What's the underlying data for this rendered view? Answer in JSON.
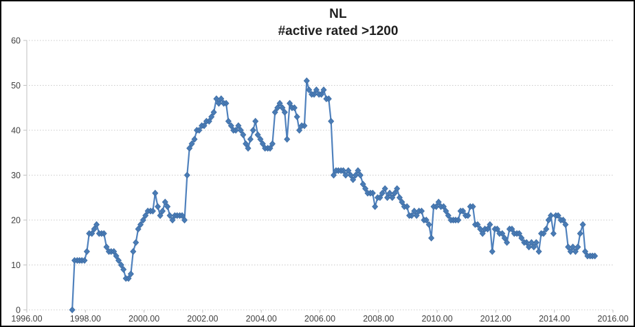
{
  "window": {
    "background": "#FFFFFF",
    "frame_border": "#000000"
  },
  "chart_data": {
    "type": "line",
    "title": "NL",
    "subtitle": "#active rated >1200",
    "xlabel": "",
    "ylabel": "",
    "xlim": [
      1996.0,
      2016.0
    ],
    "ylim": [
      0,
      60
    ],
    "x_ticks": [
      1996,
      1998,
      2000,
      2002,
      2004,
      2006,
      2008,
      2010,
      2012,
      2014,
      2016
    ],
    "x_tick_labels": [
      "1996.00",
      "1998.00",
      "2000.00",
      "2002.00",
      "2004.00",
      "2006.00",
      "2008.00",
      "2010.00",
      "2012.00",
      "2014.00",
      "2016.00"
    ],
    "y_ticks": [
      0,
      10,
      20,
      30,
      40,
      50,
      60
    ],
    "y_tick_labels": [
      "0",
      "10",
      "20",
      "30",
      "40",
      "50",
      "60"
    ],
    "grid": "horizontal dotted",
    "legend": "none",
    "marker": "diamond",
    "colors": {
      "line": "#4F81BD",
      "marker_fill": "#4A7CB5",
      "marker_edge": "#3E6DA5",
      "axis": "#BFBFBF",
      "grid": "#C9C9C9",
      "tick_label": "#3F3F3F",
      "title": "#1F1F1F"
    },
    "series": [
      {
        "name": "NL #active rated >1200",
        "points": [
          [
            1997.55,
            0
          ],
          [
            1997.63,
            11
          ],
          [
            1997.72,
            11
          ],
          [
            1997.8,
            11
          ],
          [
            1997.88,
            11
          ],
          [
            1997.97,
            11
          ],
          [
            1998.05,
            13
          ],
          [
            1998.13,
            17
          ],
          [
            1998.22,
            17
          ],
          [
            1998.3,
            18
          ],
          [
            1998.38,
            19
          ],
          [
            1998.47,
            17
          ],
          [
            1998.55,
            17
          ],
          [
            1998.63,
            17
          ],
          [
            1998.72,
            14
          ],
          [
            1998.8,
            13
          ],
          [
            1998.88,
            13
          ],
          [
            1998.97,
            13
          ],
          [
            1999.05,
            12
          ],
          [
            1999.13,
            11
          ],
          [
            1999.22,
            10
          ],
          [
            1999.3,
            9
          ],
          [
            1999.38,
            7
          ],
          [
            1999.47,
            7
          ],
          [
            1999.55,
            8
          ],
          [
            1999.63,
            13
          ],
          [
            1999.72,
            15
          ],
          [
            1999.8,
            18
          ],
          [
            1999.88,
            19
          ],
          [
            1999.97,
            20
          ],
          [
            2000.05,
            21
          ],
          [
            2000.13,
            22
          ],
          [
            2000.22,
            22
          ],
          [
            2000.3,
            22
          ],
          [
            2000.38,
            26
          ],
          [
            2000.47,
            23
          ],
          [
            2000.55,
            21
          ],
          [
            2000.63,
            22
          ],
          [
            2000.72,
            24
          ],
          [
            2000.8,
            23
          ],
          [
            2000.88,
            21
          ],
          [
            2000.97,
            20
          ],
          [
            2001.05,
            21
          ],
          [
            2001.13,
            21
          ],
          [
            2001.22,
            21
          ],
          [
            2001.3,
            21
          ],
          [
            2001.38,
            20
          ],
          [
            2001.47,
            30
          ],
          [
            2001.55,
            36
          ],
          [
            2001.63,
            37
          ],
          [
            2001.72,
            38
          ],
          [
            2001.8,
            40
          ],
          [
            2001.88,
            40
          ],
          [
            2001.97,
            41
          ],
          [
            2002.05,
            41
          ],
          [
            2002.13,
            42
          ],
          [
            2002.22,
            42
          ],
          [
            2002.3,
            43
          ],
          [
            2002.38,
            44
          ],
          [
            2002.47,
            47
          ],
          [
            2002.55,
            46
          ],
          [
            2002.63,
            47
          ],
          [
            2002.72,
            46
          ],
          [
            2002.8,
            46
          ],
          [
            2002.88,
            42
          ],
          [
            2002.97,
            41
          ],
          [
            2003.05,
            40
          ],
          [
            2003.13,
            40
          ],
          [
            2003.22,
            41
          ],
          [
            2003.3,
            40
          ],
          [
            2003.38,
            39
          ],
          [
            2003.47,
            37
          ],
          [
            2003.55,
            36
          ],
          [
            2003.63,
            38
          ],
          [
            2003.72,
            40
          ],
          [
            2003.8,
            42
          ],
          [
            2003.88,
            39
          ],
          [
            2003.97,
            38
          ],
          [
            2004.05,
            37
          ],
          [
            2004.13,
            36
          ],
          [
            2004.22,
            36
          ],
          [
            2004.3,
            36
          ],
          [
            2004.38,
            37
          ],
          [
            2004.47,
            44
          ],
          [
            2004.55,
            45
          ],
          [
            2004.63,
            46
          ],
          [
            2004.72,
            45
          ],
          [
            2004.8,
            44
          ],
          [
            2004.88,
            38
          ],
          [
            2004.97,
            46
          ],
          [
            2005.05,
            45
          ],
          [
            2005.13,
            45
          ],
          [
            2005.22,
            43
          ],
          [
            2005.3,
            40
          ],
          [
            2005.38,
            41
          ],
          [
            2005.47,
            41
          ],
          [
            2005.55,
            51
          ],
          [
            2005.63,
            49
          ],
          [
            2005.72,
            48
          ],
          [
            2005.8,
            48
          ],
          [
            2005.88,
            49
          ],
          [
            2005.97,
            48
          ],
          [
            2006.05,
            48
          ],
          [
            2006.13,
            49
          ],
          [
            2006.22,
            47
          ],
          [
            2006.3,
            47
          ],
          [
            2006.38,
            42
          ],
          [
            2006.47,
            30
          ],
          [
            2006.55,
            31
          ],
          [
            2006.63,
            31
          ],
          [
            2006.72,
            31
          ],
          [
            2006.8,
            31
          ],
          [
            2006.88,
            30
          ],
          [
            2006.97,
            31
          ],
          [
            2007.05,
            30
          ],
          [
            2007.13,
            29
          ],
          [
            2007.22,
            30
          ],
          [
            2007.3,
            31
          ],
          [
            2007.38,
            30
          ],
          [
            2007.47,
            28
          ],
          [
            2007.55,
            27
          ],
          [
            2007.63,
            26
          ],
          [
            2007.72,
            26
          ],
          [
            2007.8,
            26
          ],
          [
            2007.88,
            23
          ],
          [
            2007.97,
            25
          ],
          [
            2008.05,
            25
          ],
          [
            2008.13,
            26
          ],
          [
            2008.22,
            27
          ],
          [
            2008.3,
            25
          ],
          [
            2008.38,
            26
          ],
          [
            2008.47,
            25
          ],
          [
            2008.55,
            26
          ],
          [
            2008.63,
            27
          ],
          [
            2008.72,
            25
          ],
          [
            2008.8,
            24
          ],
          [
            2008.88,
            23
          ],
          [
            2008.97,
            23
          ],
          [
            2009.05,
            21
          ],
          [
            2009.13,
            21
          ],
          [
            2009.22,
            22
          ],
          [
            2009.3,
            21
          ],
          [
            2009.38,
            22
          ],
          [
            2009.47,
            22
          ],
          [
            2009.55,
            20
          ],
          [
            2009.63,
            20
          ],
          [
            2009.72,
            19
          ],
          [
            2009.8,
            16
          ],
          [
            2009.88,
            23
          ],
          [
            2009.97,
            23
          ],
          [
            2010.05,
            24
          ],
          [
            2010.13,
            23
          ],
          [
            2010.22,
            23
          ],
          [
            2010.3,
            22
          ],
          [
            2010.38,
            21
          ],
          [
            2010.47,
            20
          ],
          [
            2010.55,
            20
          ],
          [
            2010.63,
            20
          ],
          [
            2010.72,
            20
          ],
          [
            2010.8,
            22
          ],
          [
            2010.88,
            22
          ],
          [
            2010.97,
            21
          ],
          [
            2011.05,
            21
          ],
          [
            2011.13,
            23
          ],
          [
            2011.22,
            23
          ],
          [
            2011.3,
            19
          ],
          [
            2011.38,
            19
          ],
          [
            2011.47,
            18
          ],
          [
            2011.55,
            17
          ],
          [
            2011.63,
            18
          ],
          [
            2011.72,
            18
          ],
          [
            2011.8,
            19
          ],
          [
            2011.88,
            13
          ],
          [
            2011.97,
            18
          ],
          [
            2012.05,
            18
          ],
          [
            2012.13,
            17
          ],
          [
            2012.22,
            17
          ],
          [
            2012.3,
            16
          ],
          [
            2012.38,
            15
          ],
          [
            2012.47,
            18
          ],
          [
            2012.55,
            18
          ],
          [
            2012.63,
            17
          ],
          [
            2012.72,
            17
          ],
          [
            2012.8,
            17
          ],
          [
            2012.88,
            16
          ],
          [
            2012.97,
            15
          ],
          [
            2013.05,
            15
          ],
          [
            2013.13,
            14
          ],
          [
            2013.22,
            15
          ],
          [
            2013.3,
            14
          ],
          [
            2013.38,
            15
          ],
          [
            2013.47,
            13
          ],
          [
            2013.55,
            17
          ],
          [
            2013.63,
            17
          ],
          [
            2013.72,
            18
          ],
          [
            2013.8,
            20
          ],
          [
            2013.88,
            21
          ],
          [
            2013.97,
            17
          ],
          [
            2014.05,
            21
          ],
          [
            2014.13,
            21
          ],
          [
            2014.22,
            20
          ],
          [
            2014.3,
            20
          ],
          [
            2014.38,
            19
          ],
          [
            2014.47,
            14
          ],
          [
            2014.55,
            13
          ],
          [
            2014.63,
            14
          ],
          [
            2014.72,
            13
          ],
          [
            2014.8,
            14
          ],
          [
            2014.88,
            17
          ],
          [
            2014.97,
            19
          ],
          [
            2015.05,
            13
          ],
          [
            2015.13,
            12
          ],
          [
            2015.22,
            12
          ],
          [
            2015.3,
            12
          ],
          [
            2015.38,
            12
          ]
        ]
      }
    ]
  }
}
